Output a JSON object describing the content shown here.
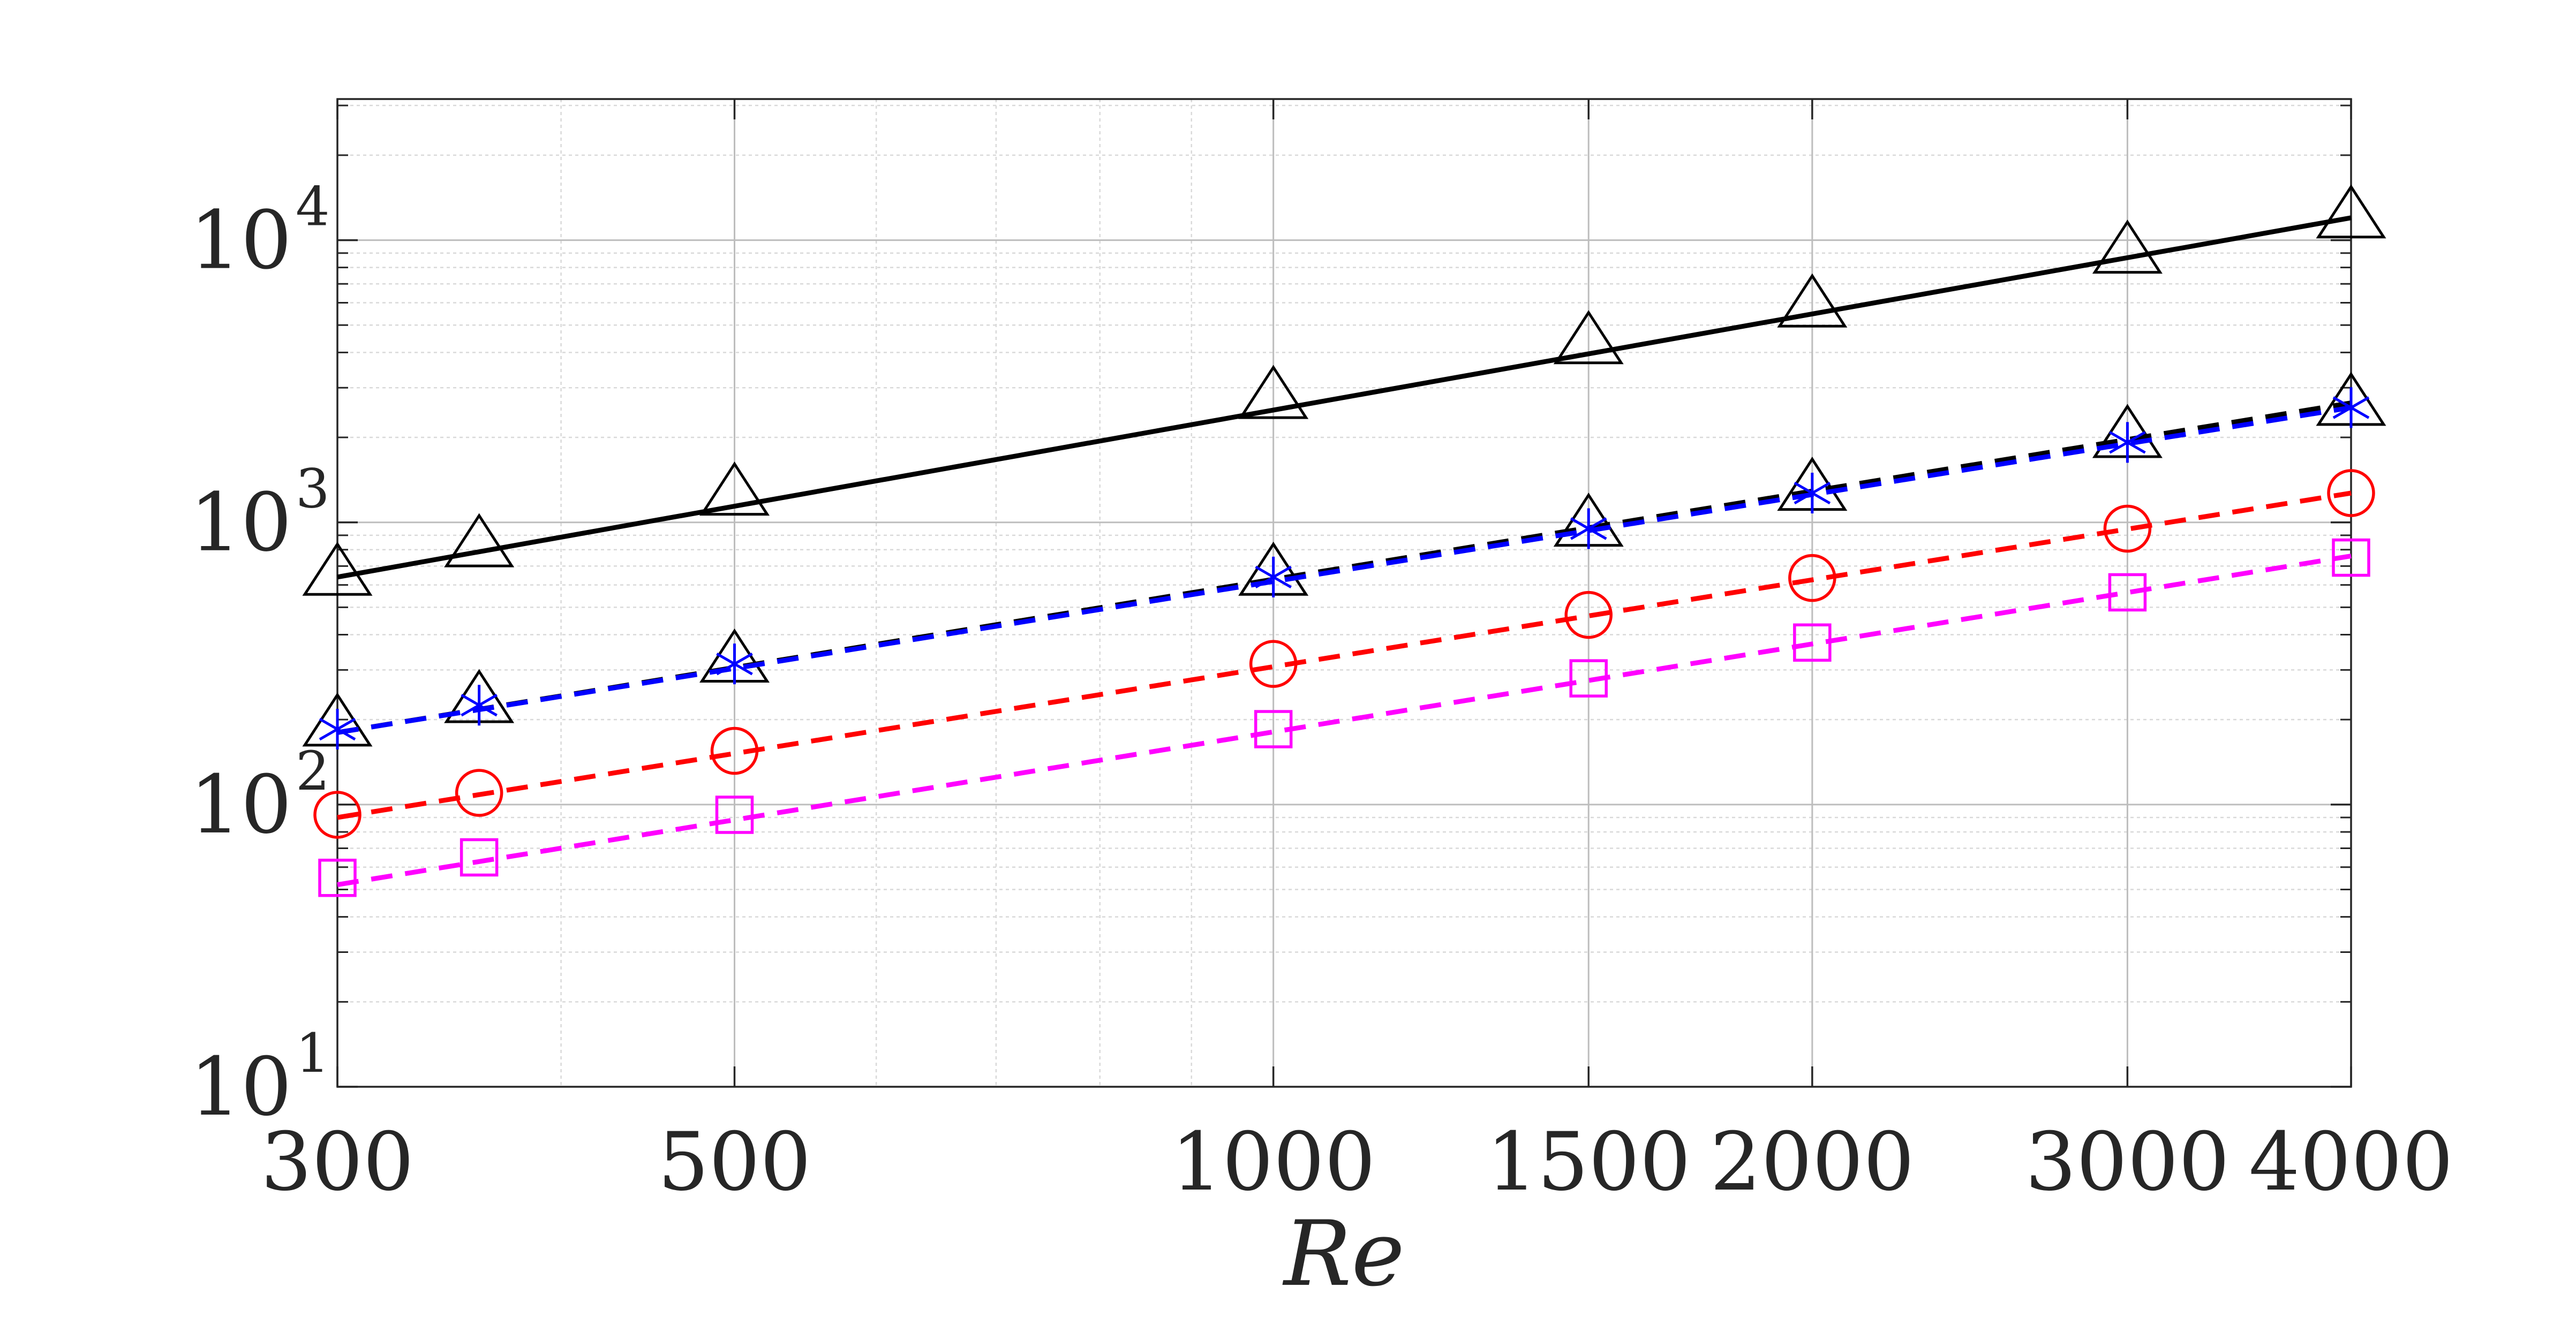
{
  "chart_data": {
    "type": "line",
    "title": "",
    "xlabel": "Re",
    "ylabel": "",
    "xscale": "log",
    "yscale": "log",
    "xlim": [
      300,
      4000
    ],
    "ylim": [
      10,
      31623
    ],
    "grid": true,
    "minor_grid": true,
    "legend": "none",
    "x": [
      300,
      360,
      500,
      1000,
      1500,
      2000,
      3000,
      4000
    ],
    "xticks": [
      {
        "value": 300,
        "label": "300"
      },
      {
        "value": 500,
        "label": "500"
      },
      {
        "value": 1000,
        "label": "1000"
      },
      {
        "value": 1500,
        "label": "1500"
      },
      {
        "value": 2000,
        "label": "2000"
      },
      {
        "value": 3000,
        "label": "3000"
      },
      {
        "value": 4000,
        "label": "4000"
      }
    ],
    "yticks": [
      {
        "value": 10,
        "base": "10",
        "exp": "1"
      },
      {
        "value": 100,
        "base": "10",
        "exp": "2"
      },
      {
        "value": 1000,
        "base": "10",
        "exp": "3"
      },
      {
        "value": 10000,
        "base": "10",
        "exp": "4"
      }
    ],
    "series": [
      {
        "name": "black solid triangles",
        "color": "#000000",
        "line_style": "solid",
        "marker": "triangle",
        "marker_color": "#000000",
        "markers": [
          650,
          820,
          1250,
          2750,
          4300,
          5800,
          9000,
          12000
        ],
        "fit": [
          640,
          12000
        ]
      },
      {
        "name": "black dashed triangles",
        "color": "#000000",
        "line_style": "dashed",
        "marker": "triangle",
        "marker_color": "#000000",
        "markers": [
          190,
          230,
          320,
          650,
          970,
          1300,
          2000,
          2600
        ],
        "fit": [
          180,
          2650
        ]
      },
      {
        "name": "blue asterisks",
        "color": "#0000ff",
        "line_style": "dashed",
        "marker": "asterisk",
        "marker_color": "#0000ff",
        "markers": [
          185,
          225,
          315,
          640,
          950,
          1270,
          1920,
          2550
        ],
        "fit": [
          180,
          2550
        ]
      },
      {
        "name": "red circles",
        "color": "#ff0000",
        "line_style": "dashed",
        "marker": "circle",
        "marker_color": "#ff0000",
        "markers": [
          92,
          110,
          155,
          315,
          470,
          635,
          950,
          1270
        ],
        "fit": [
          90,
          1270
        ]
      },
      {
        "name": "magenta squares",
        "color": "#ff00ff",
        "line_style": "dashed",
        "marker": "square",
        "marker_color": "#ff00ff",
        "markers": [
          55,
          65,
          92,
          185,
          280,
          375,
          565,
          750
        ],
        "fit": [
          52,
          760
        ]
      }
    ]
  }
}
